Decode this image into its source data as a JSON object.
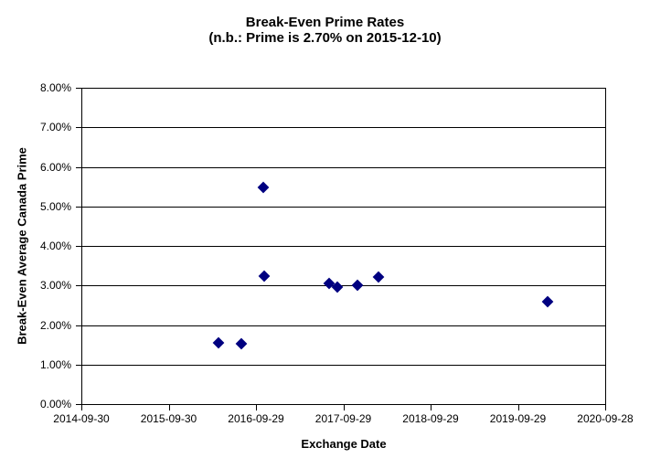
{
  "chart_data": {
    "type": "scatter",
    "title": "Break-Even Prime Rates",
    "subtitle": "(n.b.: Prime is 2.70% on 2015-12-10)",
    "xlabel": "Exchange Date",
    "ylabel": "Break-Even Average Canada Prime",
    "x_tick_labels": [
      "2014-09-30",
      "2015-09-30",
      "2016-09-29",
      "2017-09-29",
      "2018-09-29",
      "2019-09-29",
      "2020-09-28"
    ],
    "y_tick_labels": [
      "0.00%",
      "1.00%",
      "2.00%",
      "3.00%",
      "4.00%",
      "5.00%",
      "6.00%",
      "7.00%",
      "8.00%"
    ],
    "x_axis": {
      "start": "2014-09-30",
      "end": "2020-09-28"
    },
    "y_axis": {
      "min_pct": 0,
      "max_pct": 8,
      "step_pct": 1
    },
    "grid": "horizontal",
    "legend": "none",
    "marker": {
      "shape": "diamond",
      "color": "#000080"
    },
    "points": [
      {
        "date": "2016-04-24",
        "value_pct": 1.54
      },
      {
        "date": "2016-07-30",
        "value_pct": 1.52
      },
      {
        "date": "2016-10-30",
        "value_pct": 5.47
      },
      {
        "date": "2016-11-01",
        "value_pct": 3.23
      },
      {
        "date": "2017-08-01",
        "value_pct": 3.06
      },
      {
        "date": "2017-09-03",
        "value_pct": 2.95
      },
      {
        "date": "2017-11-27",
        "value_pct": 3.0
      },
      {
        "date": "2018-02-24",
        "value_pct": 3.22
      },
      {
        "date": "2020-01-30",
        "value_pct": 2.6
      }
    ]
  }
}
